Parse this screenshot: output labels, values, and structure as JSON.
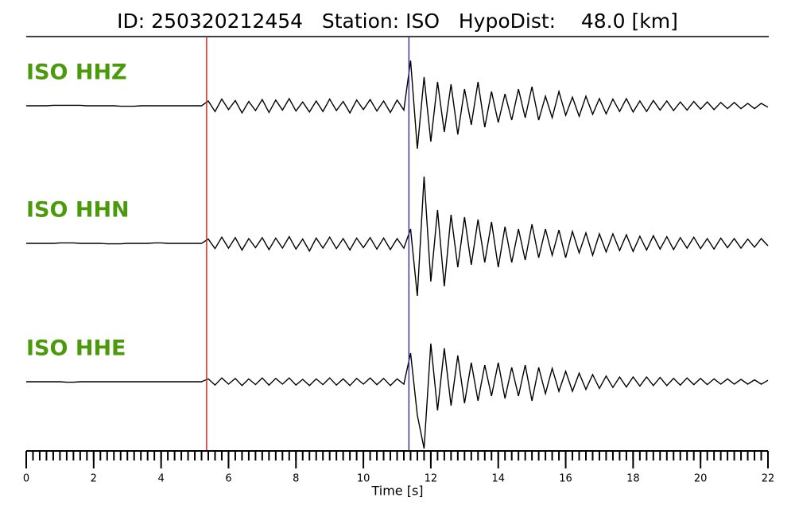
{
  "chart_data": {
    "type": "seismogram",
    "title": "ID: 250320212454   Station: ISO   HypoDist:    48.0 [km]",
    "xlabel": "Time [s]",
    "xlim": [
      0,
      22
    ],
    "xticks": [
      0,
      2,
      4,
      6,
      8,
      10,
      12,
      14,
      16,
      18,
      20,
      22
    ],
    "xminor_step": 0.2,
    "label_color": "#4b9a0c",
    "markers": [
      {
        "x": 5.35,
        "color": "#e8261c"
      },
      {
        "x": 11.35,
        "color": "#3a3aaa"
      }
    ],
    "x": [
      0,
      0.2,
      0.4,
      0.6,
      0.8,
      1,
      1.2,
      1.4,
      1.6,
      1.8,
      2,
      2.2,
      2.4,
      2.6,
      2.8,
      3,
      3.2,
      3.4,
      3.6,
      3.8,
      4,
      4.2,
      4.4,
      4.6,
      4.8,
      5,
      5.2,
      5.4,
      5.6,
      5.8,
      6,
      6.2,
      6.4,
      6.6,
      6.8,
      7,
      7.2,
      7.4,
      7.6,
      7.8,
      8,
      8.2,
      8.4,
      8.6,
      8.8,
      9,
      9.2,
      9.4,
      9.6,
      9.8,
      10,
      10.2,
      10.4,
      10.6,
      10.8,
      11,
      11.2,
      11.4,
      11.6,
      11.8,
      12,
      12.2,
      12.4,
      12.6,
      12.8,
      13,
      13.2,
      13.4,
      13.6,
      13.8,
      14,
      14.2,
      14.4,
      14.6,
      14.8,
      15,
      15.2,
      15.4,
      15.6,
      15.8,
      16,
      16.2,
      16.4,
      16.6,
      16.8,
      17,
      17.2,
      17.4,
      17.6,
      17.8,
      18,
      18.2,
      18.4,
      18.6,
      18.8,
      19,
      19.2,
      19.4,
      19.6,
      19.8,
      20,
      20.2,
      20.4,
      20.6,
      20.8,
      21,
      21.2,
      21.4,
      21.6,
      21.8,
      22
    ],
    "series": [
      {
        "name": "ISO HHZ",
        "color": "#000000",
        "values": [
          0,
          0,
          0,
          0,
          0.01,
          0.01,
          0.01,
          0.01,
          0.01,
          0,
          0,
          0,
          0,
          0,
          -0.01,
          -0.01,
          -0.01,
          0,
          0,
          0,
          0,
          0,
          0,
          0,
          0,
          0,
          0,
          0.1,
          -0.12,
          0.14,
          -0.08,
          0.11,
          -0.15,
          0.09,
          -0.1,
          0.13,
          -0.14,
          0.12,
          -0.09,
          0.15,
          -0.11,
          0.08,
          -0.13,
          0.1,
          -0.12,
          0.14,
          -0.1,
          0.09,
          -0.15,
          0.12,
          -0.08,
          0.13,
          -0.11,
          0.1,
          -0.14,
          0.12,
          -0.09,
          0.95,
          -0.9,
          0.6,
          -0.75,
          0.5,
          -0.55,
          0.45,
          -0.6,
          0.35,
          -0.4,
          0.5,
          -0.45,
          0.3,
          -0.35,
          0.25,
          -0.3,
          0.35,
          -0.25,
          0.4,
          -0.3,
          0.2,
          -0.25,
          0.3,
          -0.2,
          0.18,
          -0.22,
          0.2,
          -0.18,
          0.15,
          -0.17,
          0.14,
          -0.12,
          0.15,
          -0.13,
          0.1,
          -0.12,
          0.11,
          -0.09,
          0.1,
          -0.1,
          0.08,
          -0.09,
          0.09,
          -0.07,
          0.08,
          -0.08,
          0.07,
          -0.06,
          0.07,
          -0.06,
          0.05,
          -0.06,
          0.05,
          -0.03
        ]
      },
      {
        "name": "ISO HHN",
        "color": "#000000",
        "values": [
          0,
          0,
          0,
          0,
          0,
          0.01,
          0.01,
          0.01,
          0,
          0,
          0,
          0,
          -0.01,
          -0.01,
          -0.01,
          0,
          0,
          0,
          0,
          0.01,
          0.01,
          0,
          0,
          0,
          0,
          0,
          0,
          0.09,
          -0.11,
          0.13,
          -0.1,
          0.12,
          -0.14,
          0.1,
          -0.09,
          0.12,
          -0.13,
          0.11,
          -0.1,
          0.14,
          -0.12,
          0.09,
          -0.16,
          0.11,
          -0.1,
          0.13,
          -0.11,
          0.1,
          -0.14,
          0.11,
          -0.09,
          0.12,
          -0.12,
          0.11,
          -0.13,
          0.1,
          -0.1,
          0.3,
          -1.1,
          1.4,
          -0.8,
          0.7,
          -0.9,
          0.6,
          -0.5,
          0.55,
          -0.45,
          0.5,
          -0.4,
          0.45,
          -0.5,
          0.35,
          -0.4,
          0.3,
          -0.35,
          0.4,
          -0.3,
          0.3,
          -0.25,
          0.28,
          -0.3,
          0.25,
          -0.2,
          0.22,
          -0.25,
          0.2,
          -0.18,
          0.2,
          -0.15,
          0.18,
          -0.17,
          0.15,
          -0.14,
          0.16,
          -0.12,
          0.14,
          -0.13,
          0.12,
          -0.1,
          0.13,
          -0.11,
          0.1,
          -0.12,
          0.11,
          -0.09,
          0.1,
          -0.1,
          0.09,
          -0.08,
          0.1,
          -0.05
        ]
      },
      {
        "name": "ISO HHE",
        "color": "#000000",
        "values": [
          0,
          0,
          0,
          0,
          0,
          0,
          -0.01,
          -0.01,
          0,
          0,
          0,
          0,
          0,
          0,
          0,
          0,
          0,
          0,
          0,
          0,
          0,
          0,
          0,
          0,
          0,
          0,
          0,
          0.06,
          -0.07,
          0.08,
          -0.05,
          0.07,
          -0.08,
          0.06,
          -0.06,
          0.08,
          -0.07,
          0.07,
          -0.05,
          0.08,
          -0.07,
          0.05,
          -0.08,
          0.06,
          -0.06,
          0.08,
          -0.07,
          0.06,
          -0.08,
          0.07,
          -0.05,
          0.08,
          -0.06,
          0.07,
          -0.08,
          0.06,
          -0.05,
          0.6,
          -0.7,
          -1.4,
          0.8,
          -0.6,
          0.7,
          -0.5,
          0.55,
          -0.45,
          0.4,
          -0.4,
          0.35,
          -0.3,
          0.4,
          -0.35,
          0.3,
          -0.3,
          0.35,
          -0.4,
          0.3,
          -0.25,
          0.28,
          -0.2,
          0.22,
          -0.2,
          0.18,
          -0.16,
          0.15,
          -0.14,
          0.12,
          -0.12,
          0.1,
          -0.11,
          0.1,
          -0.09,
          0.1,
          -0.08,
          0.09,
          -0.08,
          0.07,
          -0.07,
          0.08,
          -0.06,
          0.07,
          -0.06,
          0.06,
          -0.05,
          0.06,
          -0.05,
          0.05,
          -0.05,
          0.04,
          -0.05,
          0.03
        ]
      }
    ]
  }
}
